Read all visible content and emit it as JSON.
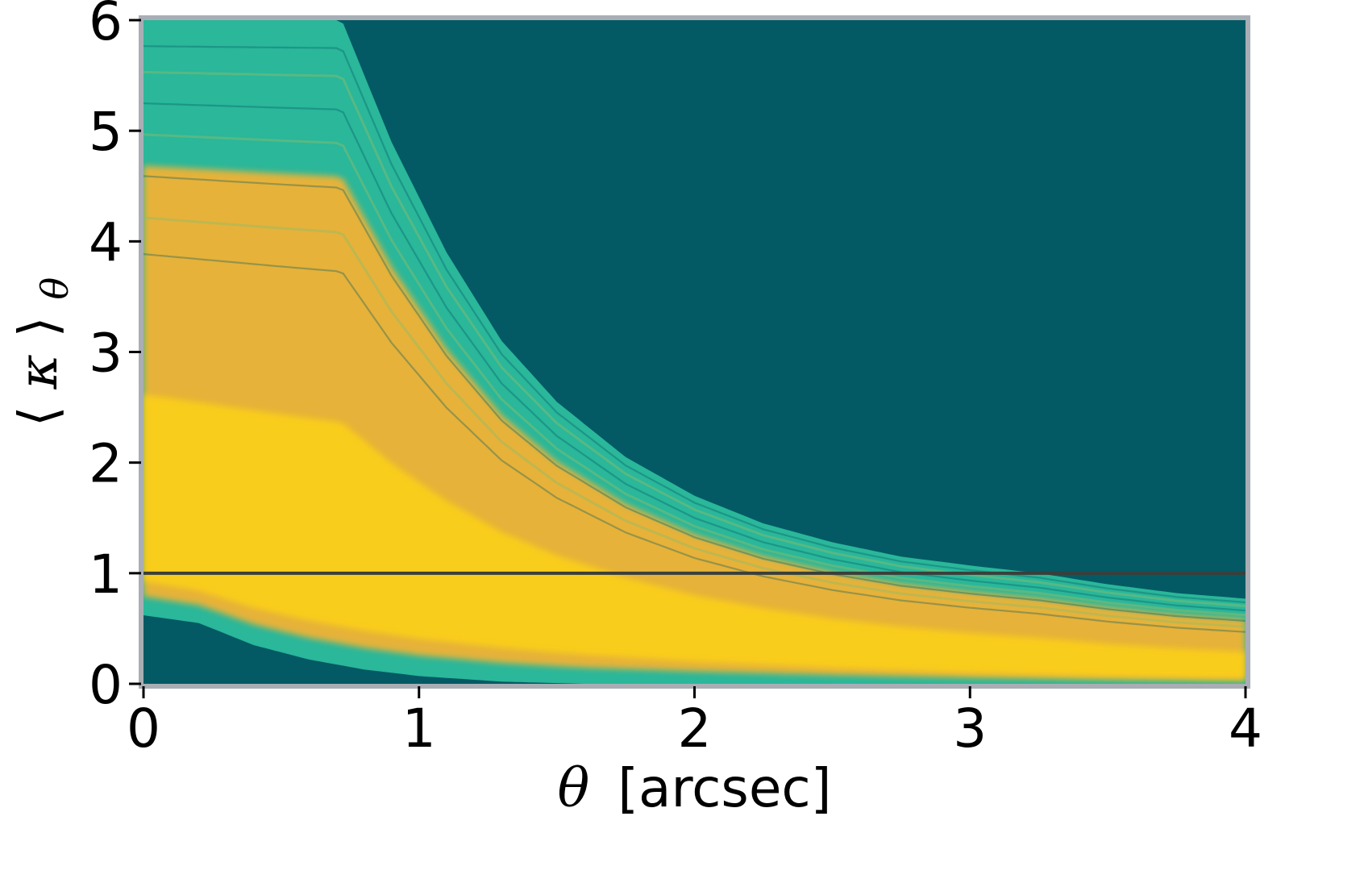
{
  "chart_data": {
    "type": "heatmap",
    "title": "",
    "xlabel": {
      "symbol": "θ",
      "unit": "[arcsec]"
    },
    "ylabel": {
      "open": "⟨",
      "symbol": "κ",
      "close": "⟩",
      "subscript": "θ"
    },
    "xlim": [
      0,
      4
    ],
    "ylim": [
      0,
      6
    ],
    "xticks": [
      0,
      1,
      2,
      3,
      4
    ],
    "yticks": [
      0,
      1,
      2,
      3,
      4,
      5,
      6
    ],
    "xtick_labels": [
      "0",
      "1",
      "2",
      "3",
      "4"
    ],
    "ytick_labels": [
      "0",
      "1",
      "2",
      "3",
      "4",
      "5",
      "6"
    ],
    "grid": false,
    "reference_line": {
      "y": 1,
      "color": "#3a3f3a"
    },
    "density_band": {
      "description_of_shape": "mean convergence profiles, decreasing with theta",
      "upper_envelope": [
        [
          0.0,
          6.0
        ],
        [
          0.5,
          6.0
        ],
        [
          0.72,
          6.0
        ],
        [
          0.9,
          4.9
        ],
        [
          1.1,
          3.9
        ],
        [
          1.3,
          3.1
        ],
        [
          1.5,
          2.55
        ],
        [
          1.75,
          2.05
        ],
        [
          2.0,
          1.7
        ],
        [
          2.25,
          1.45
        ],
        [
          2.5,
          1.28
        ],
        [
          2.75,
          1.15
        ],
        [
          3.0,
          1.07
        ],
        [
          3.25,
          1.0
        ],
        [
          3.5,
          0.9
        ],
        [
          3.75,
          0.82
        ],
        [
          4.0,
          0.77
        ]
      ],
      "lower_envelope": [
        [
          0.0,
          0.62
        ],
        [
          0.2,
          0.55
        ],
        [
          0.4,
          0.35
        ],
        [
          0.6,
          0.22
        ],
        [
          0.8,
          0.13
        ],
        [
          1.0,
          0.07
        ],
        [
          1.3,
          0.02
        ],
        [
          1.6,
          0.0
        ],
        [
          4.0,
          0.0
        ]
      ],
      "peak_ridge": [
        [
          0.0,
          1.3
        ],
        [
          0.5,
          1.05
        ],
        [
          1.0,
          0.82
        ],
        [
          1.5,
          0.62
        ],
        [
          2.0,
          0.45
        ],
        [
          2.5,
          0.32
        ],
        [
          3.0,
          0.22
        ],
        [
          3.5,
          0.15
        ],
        [
          4.0,
          0.1
        ]
      ]
    },
    "colors": {
      "background": "#045a64",
      "low_density": "#2ab79a",
      "mid_density": "#8fbd6a",
      "high_density": "#f6b232",
      "peak_density": "#fdd213",
      "frame": "#a9aeb5"
    }
  }
}
